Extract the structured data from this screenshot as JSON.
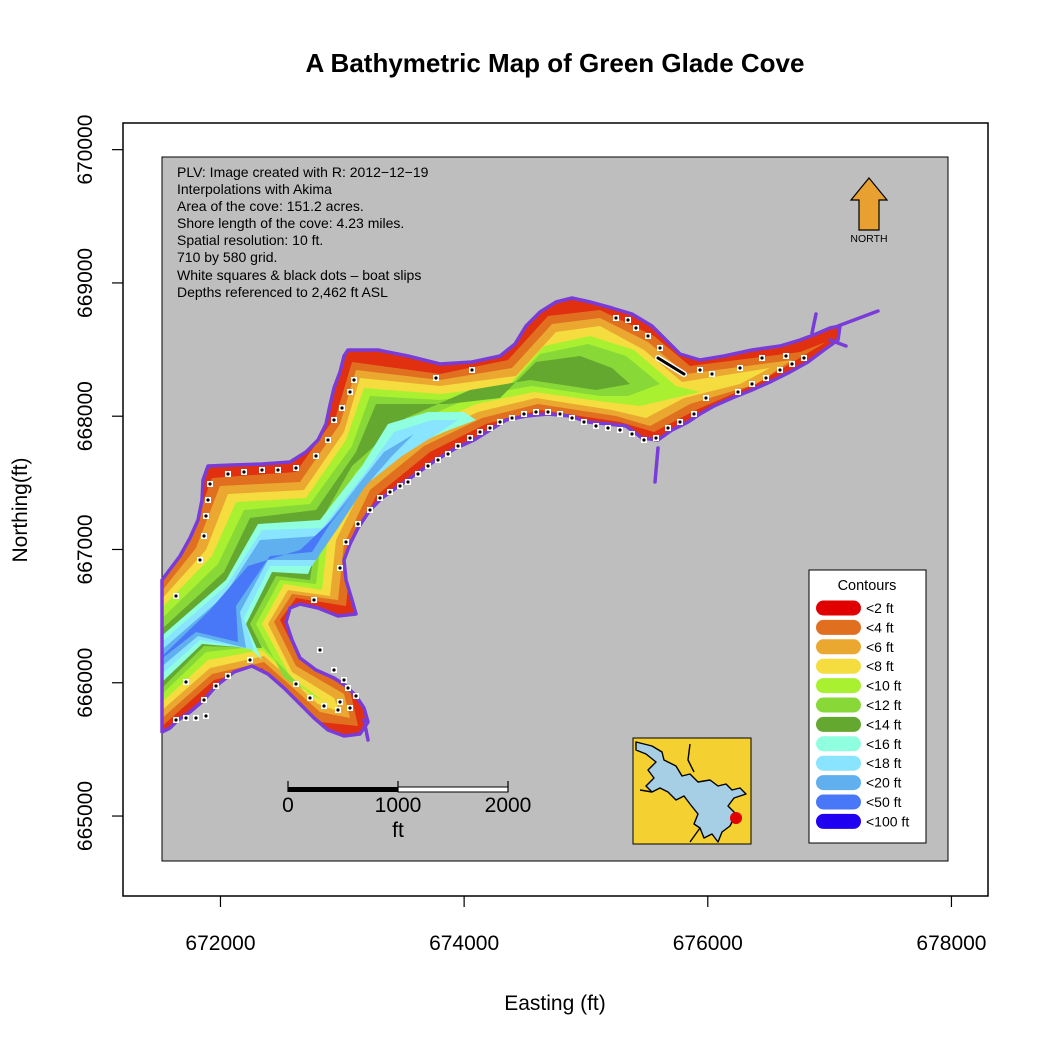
{
  "title": "A Bathymetric Map of  Green Glade Cove",
  "axes": {
    "xlabel": "Easting (ft)",
    "ylabel": "Northing(ft)",
    "x_ticks": [
      "672000",
      "674000",
      "676000",
      "678000"
    ],
    "y_ticks": [
      "665000",
      "666000",
      "667000",
      "668000",
      "669000",
      "670000"
    ]
  },
  "info_lines": [
    "PLV: Image created with R: 2012−12−19",
    "Interpolations with Akima",
    "Area of the cove: 151.2 acres.",
    "Shore length of the cove: 4.23 miles.",
    "Spatial resolution: 10 ft.",
    "710 by 580 grid.",
    "White squares & black dots – boat slips",
    "Depths referenced to 2,462 ft ASL"
  ],
  "north_arrow": {
    "label": "NORTH",
    "color": "#e8a030"
  },
  "scale_bar": {
    "ticks": [
      "0",
      "1000",
      "2000"
    ],
    "unit": "ft"
  },
  "legend": {
    "title": "Contours",
    "items": [
      {
        "label": "<2 ft",
        "color": "#e00000"
      },
      {
        "label": "<4 ft",
        "color": "#e07020"
      },
      {
        "label": "<6 ft",
        "color": "#eba830"
      },
      {
        "label": "<8 ft",
        "color": "#f5dd40"
      },
      {
        "label": "<10 ft",
        "color": "#a8f030"
      },
      {
        "label": "<12 ft",
        "color": "#88d838"
      },
      {
        "label": "<14 ft",
        "color": "#64a830"
      },
      {
        "label": "<16 ft",
        "color": "#90ffe0"
      },
      {
        "label": "<18 ft",
        "color": "#88e4ff"
      },
      {
        "label": "<20 ft",
        "color": "#60b0f0"
      },
      {
        "label": "<50 ft",
        "color": "#4878f8"
      },
      {
        "label": "<100 ft",
        "color": "#2000f0"
      }
    ]
  },
  "colors": {
    "map_background": "#bebebe",
    "shoreline": "#7a3cd8",
    "inset_background": "#f4d030",
    "inset_water": "#a6cfe6",
    "inset_marker": "#e00000"
  },
  "chart_data": {
    "type": "contour-map",
    "x_range": [
      671200,
      678300
    ],
    "y_range": [
      664400,
      670200
    ],
    "x_ticks": [
      672000,
      674000,
      676000,
      678000
    ],
    "y_ticks": [
      665000,
      666000,
      667000,
      668000,
      669000,
      670000
    ],
    "depth_bins_ft": [
      2,
      4,
      6,
      8,
      10,
      12,
      14,
      16,
      18,
      20,
      50,
      100
    ]
  }
}
